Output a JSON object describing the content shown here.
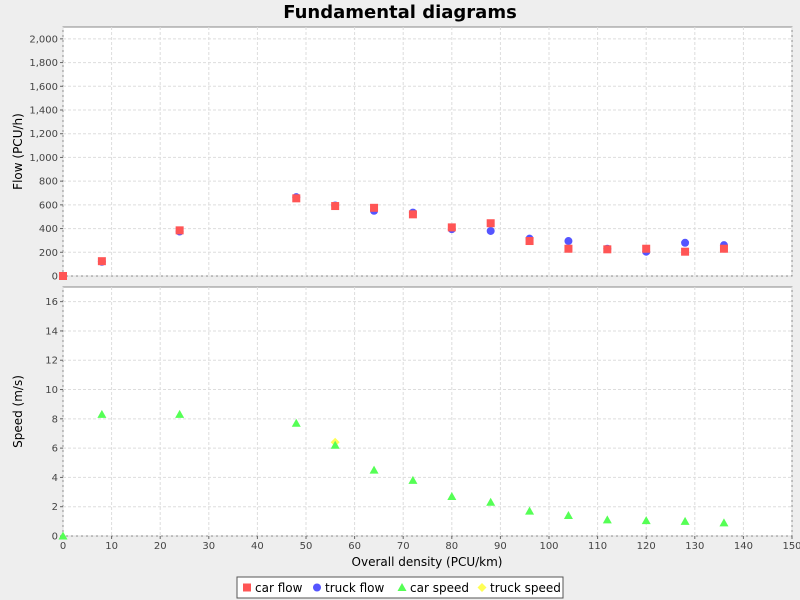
{
  "chart_data": {
    "title": "Fundamental diagrams",
    "xlabel": "Overall density (PCU/km)",
    "xlim": [
      0,
      150
    ],
    "x_ticks": [
      0,
      10,
      20,
      30,
      40,
      50,
      60,
      70,
      80,
      90,
      100,
      110,
      120,
      130,
      140,
      150
    ],
    "x_tick_labels": [
      "0",
      "10",
      "20",
      "30",
      "40",
      "50",
      "60",
      "70",
      "80",
      "90",
      "100",
      "110",
      "120",
      "130",
      "140",
      "150"
    ],
    "grid": true,
    "legend_position": "bottom",
    "subplots": [
      {
        "type": "scatter",
        "ylabel": "Flow (PCU/h)",
        "ylim": [
          0,
          2100
        ],
        "y_ticks": [
          0,
          200,
          400,
          600,
          800,
          1000,
          1200,
          1400,
          1600,
          1800,
          2000
        ],
        "y_tick_labels": [
          "0",
          "200",
          "400",
          "600",
          "800",
          "1,000",
          "1,200",
          "1,400",
          "1,600",
          "1,800",
          "2,000"
        ],
        "series": [
          {
            "name": "truck flow",
            "color": "#5555ff",
            "marker": "circle",
            "points": [
              [
                0,
                0
              ],
              [
                8,
                120
              ],
              [
                24,
                375
              ],
              [
                48,
                665
              ],
              [
                56,
                595
              ],
              [
                64,
                550
              ],
              [
                72,
                535
              ],
              [
                80,
                395
              ],
              [
                88,
                380
              ],
              [
                96,
                315
              ],
              [
                104,
                295
              ],
              [
                112,
                230
              ],
              [
                120,
                205
              ],
              [
                128,
                280
              ],
              [
                136,
                260
              ]
            ]
          },
          {
            "name": "car flow",
            "color": "#ff5555",
            "marker": "square",
            "points": [
              [
                0,
                0
              ],
              [
                8,
                125
              ],
              [
                24,
                385
              ],
              [
                48,
                655
              ],
              [
                56,
                590
              ],
              [
                64,
                575
              ],
              [
                72,
                520
              ],
              [
                80,
                410
              ],
              [
                88,
                445
              ],
              [
                96,
                295
              ],
              [
                104,
                230
              ],
              [
                112,
                225
              ],
              [
                120,
                230
              ],
              [
                128,
                205
              ],
              [
                136,
                230
              ]
            ]
          }
        ]
      },
      {
        "type": "scatter",
        "ylabel": "Speed (m/s)",
        "ylim": [
          0,
          17
        ],
        "y_ticks": [
          0,
          2,
          4,
          6,
          8,
          10,
          12,
          14,
          16
        ],
        "y_tick_labels": [
          "0",
          "2",
          "4",
          "6",
          "8",
          "10",
          "12",
          "14",
          "16"
        ],
        "series": [
          {
            "name": "truck speed",
            "color": "#ffff55",
            "marker": "diamond",
            "points": [
              [
                56,
                6.4
              ]
            ]
          },
          {
            "name": "car speed",
            "color": "#55ff55",
            "marker": "triangle",
            "points": [
              [
                0,
                0
              ],
              [
                8,
                8.3
              ],
              [
                24,
                8.3
              ],
              [
                48,
                7.7
              ],
              [
                56,
                6.2
              ],
              [
                64,
                4.5
              ],
              [
                72,
                3.8
              ],
              [
                80,
                2.7
              ],
              [
                88,
                2.3
              ],
              [
                96,
                1.7
              ],
              [
                104,
                1.4
              ],
              [
                112,
                1.1
              ],
              [
                120,
                1.05
              ],
              [
                128,
                1.0
              ],
              [
                136,
                0.9
              ]
            ]
          }
        ]
      }
    ],
    "legend": [
      {
        "name": "car flow",
        "color": "#ff5555",
        "marker": "square"
      },
      {
        "name": "truck flow",
        "color": "#5555ff",
        "marker": "circle"
      },
      {
        "name": "car speed",
        "color": "#55ff55",
        "marker": "triangle"
      },
      {
        "name": "truck speed",
        "color": "#ffff55",
        "marker": "diamond"
      }
    ]
  }
}
